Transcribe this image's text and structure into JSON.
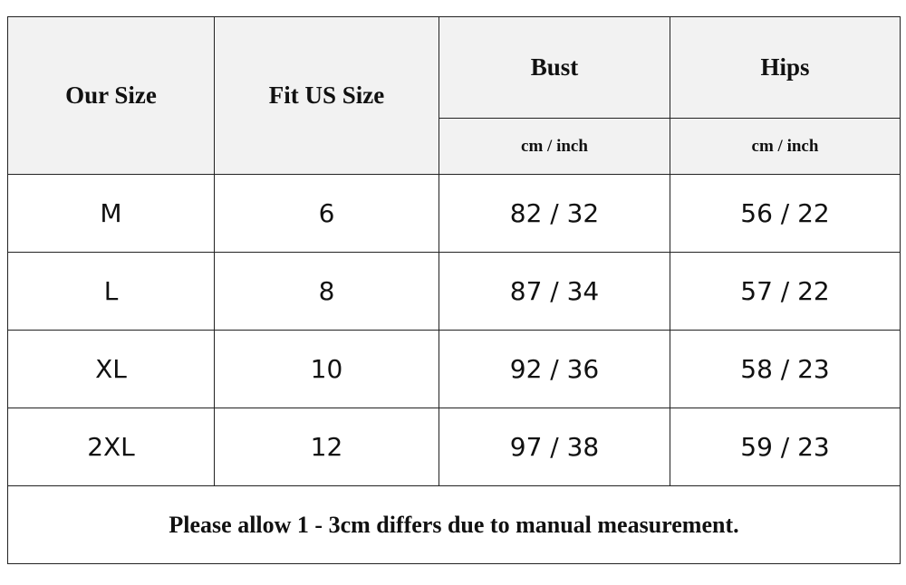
{
  "table": {
    "header": {
      "columns": [
        "Our Size",
        "Fit US Size",
        "Bust",
        "Hips"
      ],
      "units": [
        "cm / inch",
        "cm / inch"
      ]
    },
    "rows": [
      [
        "M",
        "6",
        "82 / 32",
        "56 / 22"
      ],
      [
        "L",
        "8",
        "87 / 34",
        "57 / 22"
      ],
      [
        "XL",
        "10",
        "92 / 36",
        "58 / 23"
      ],
      [
        "2XL",
        "12",
        "97 / 38",
        "59 / 23"
      ]
    ],
    "footnote": "Please allow 1 - 3cm differs due to manual measurement."
  }
}
